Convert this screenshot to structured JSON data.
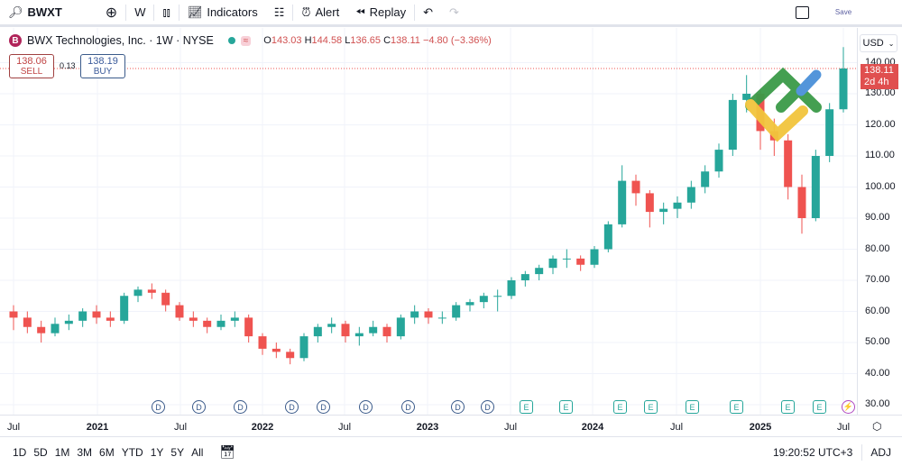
{
  "toolbar": {
    "symbol": "BWXT",
    "interval": "W",
    "indicators": "Indicators",
    "alert": "Alert",
    "replay": "Replay",
    "save": "Save"
  },
  "legend": {
    "logo_letter": "B",
    "title": "BWX Technologies, Inc. · 1W · NYSE",
    "o_label": "O",
    "open": "143.03",
    "h_label": "H",
    "high": "144.58",
    "l_label": "L",
    "low": "136.65",
    "c_label": "C",
    "close": "138.11",
    "change": "−4.80 (−3.36%)"
  },
  "trade": {
    "sell_price": "138.06",
    "sell_label": "SELL",
    "spread": "0.13",
    "buy_price": "138.19",
    "buy_label": "BUY"
  },
  "price_axis": {
    "currency": "USD",
    "current_price": "138.11",
    "countdown": "2d 4h"
  },
  "time_range_buttons": [
    "1D",
    "5D",
    "1M",
    "3M",
    "6M",
    "YTD",
    "1Y",
    "5Y",
    "All"
  ],
  "status": {
    "clock": "19:20:52 UTC+3",
    "adj": "ADJ"
  },
  "colors": {
    "up": "#26a69a",
    "down": "#ef5350",
    "accent": "#2962ff"
  },
  "events": {
    "dividend": "D",
    "earnings": "E"
  },
  "chart_data": {
    "type": "candlestick",
    "interval": "1W (shown aggregated monthly approximation)",
    "ylim": [
      27,
      147
    ],
    "y_ticks": [
      "30.00",
      "40.00",
      "50.00",
      "60.00",
      "70.00",
      "80.00",
      "90.00",
      "100.00",
      "110.00",
      "120.00",
      "130.00",
      "140.00"
    ],
    "x_ticks": [
      "Jul",
      "2021",
      "Jul",
      "2022",
      "Jul",
      "2023",
      "Jul",
      "2024",
      "Jul",
      "2025",
      "Jul"
    ],
    "grid": true,
    "ohlc": [
      [
        60,
        62,
        54,
        58
      ],
      [
        58,
        60,
        53,
        55
      ],
      [
        55,
        57,
        50,
        53
      ],
      [
        53,
        58,
        52,
        56
      ],
      [
        56,
        59,
        54,
        57
      ],
      [
        57,
        61,
        55,
        60
      ],
      [
        60,
        62,
        56,
        58
      ],
      [
        58,
        60,
        55,
        57
      ],
      [
        57,
        66,
        56,
        65
      ],
      [
        65,
        68,
        63,
        67
      ],
      [
        67,
        69,
        64,
        66
      ],
      [
        66,
        67,
        60,
        62
      ],
      [
        62,
        63,
        57,
        58
      ],
      [
        58,
        60,
        55,
        57
      ],
      [
        57,
        58,
        53,
        55
      ],
      [
        55,
        59,
        54,
        57
      ],
      [
        57,
        60,
        55,
        58
      ],
      [
        58,
        59,
        50,
        52
      ],
      [
        52,
        53,
        46,
        48
      ],
      [
        48,
        50,
        45,
        47
      ],
      [
        47,
        48,
        43,
        45
      ],
      [
        45,
        53,
        44,
        52
      ],
      [
        52,
        56,
        50,
        55
      ],
      [
        55,
        58,
        53,
        56
      ],
      [
        56,
        57,
        50,
        52
      ],
      [
        52,
        55,
        49,
        53
      ],
      [
        53,
        57,
        52,
        55
      ],
      [
        55,
        56,
        50,
        52
      ],
      [
        52,
        59,
        51,
        58
      ],
      [
        58,
        62,
        56,
        60
      ],
      [
        60,
        61,
        56,
        58
      ],
      [
        58,
        60,
        56,
        58
      ],
      [
        58,
        63,
        57,
        62
      ],
      [
        62,
        64,
        60,
        63
      ],
      [
        63,
        66,
        61,
        65
      ],
      [
        65,
        67,
        60,
        65
      ],
      [
        65,
        71,
        64,
        70
      ],
      [
        70,
        73,
        68,
        72
      ],
      [
        72,
        75,
        70,
        74
      ],
      [
        74,
        78,
        72,
        77
      ],
      [
        77,
        80,
        74,
        77
      ],
      [
        77,
        78,
        73,
        75
      ],
      [
        75,
        81,
        74,
        80
      ],
      [
        80,
        89,
        79,
        88
      ],
      [
        88,
        107,
        87,
        102
      ],
      [
        102,
        104,
        94,
        98
      ],
      [
        98,
        99,
        87,
        92
      ],
      [
        92,
        95,
        88,
        93
      ],
      [
        93,
        97,
        90,
        95
      ],
      [
        95,
        102,
        93,
        100
      ],
      [
        100,
        107,
        98,
        105
      ],
      [
        105,
        114,
        103,
        112
      ],
      [
        112,
        130,
        110,
        128
      ],
      [
        128,
        136,
        124,
        130
      ],
      [
        130,
        131,
        112,
        118
      ],
      [
        118,
        122,
        110,
        115
      ],
      [
        115,
        117,
        96,
        100
      ],
      [
        100,
        104,
        85,
        90
      ],
      [
        90,
        112,
        89,
        110
      ],
      [
        110,
        127,
        108,
        125
      ],
      [
        125,
        145,
        124,
        138.11
      ]
    ]
  },
  "time_labels": [
    "Jul",
    "2021",
    "Jul",
    "2022",
    "Jul",
    "2023",
    "Jul",
    "2024",
    "Jul",
    "2025",
    "Jul"
  ]
}
